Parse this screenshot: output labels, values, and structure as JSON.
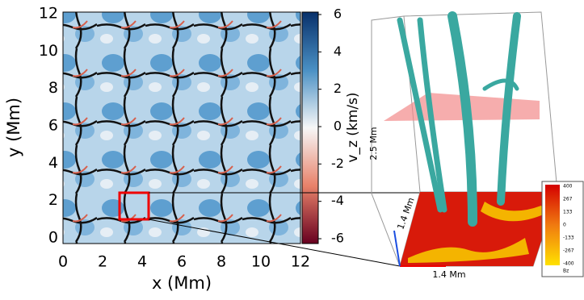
{
  "left_panel": {
    "xlabel": "x (Mm)",
    "ylabel": "y (Mm)",
    "xticks": [
      "0",
      "2",
      "4",
      "6",
      "8",
      "10",
      "12"
    ],
    "yticks": [
      "0",
      "2",
      "4",
      "6",
      "8",
      "10",
      "12"
    ],
    "colorbar_label": "v_z (km/s)",
    "colorbar_ticks": [
      "6",
      "4",
      "2",
      "0",
      "-2",
      "-4",
      "-6"
    ]
  },
  "right_panel": {
    "height_label": "2.5 Mm",
    "depth_label": "1.4 Mm",
    "width_label": "1.4 Mm",
    "colorbar_ticks": [
      "400",
      "267",
      "133",
      "0",
      "-133",
      "-267",
      "-400"
    ],
    "colorbar_label": "Bz"
  }
}
